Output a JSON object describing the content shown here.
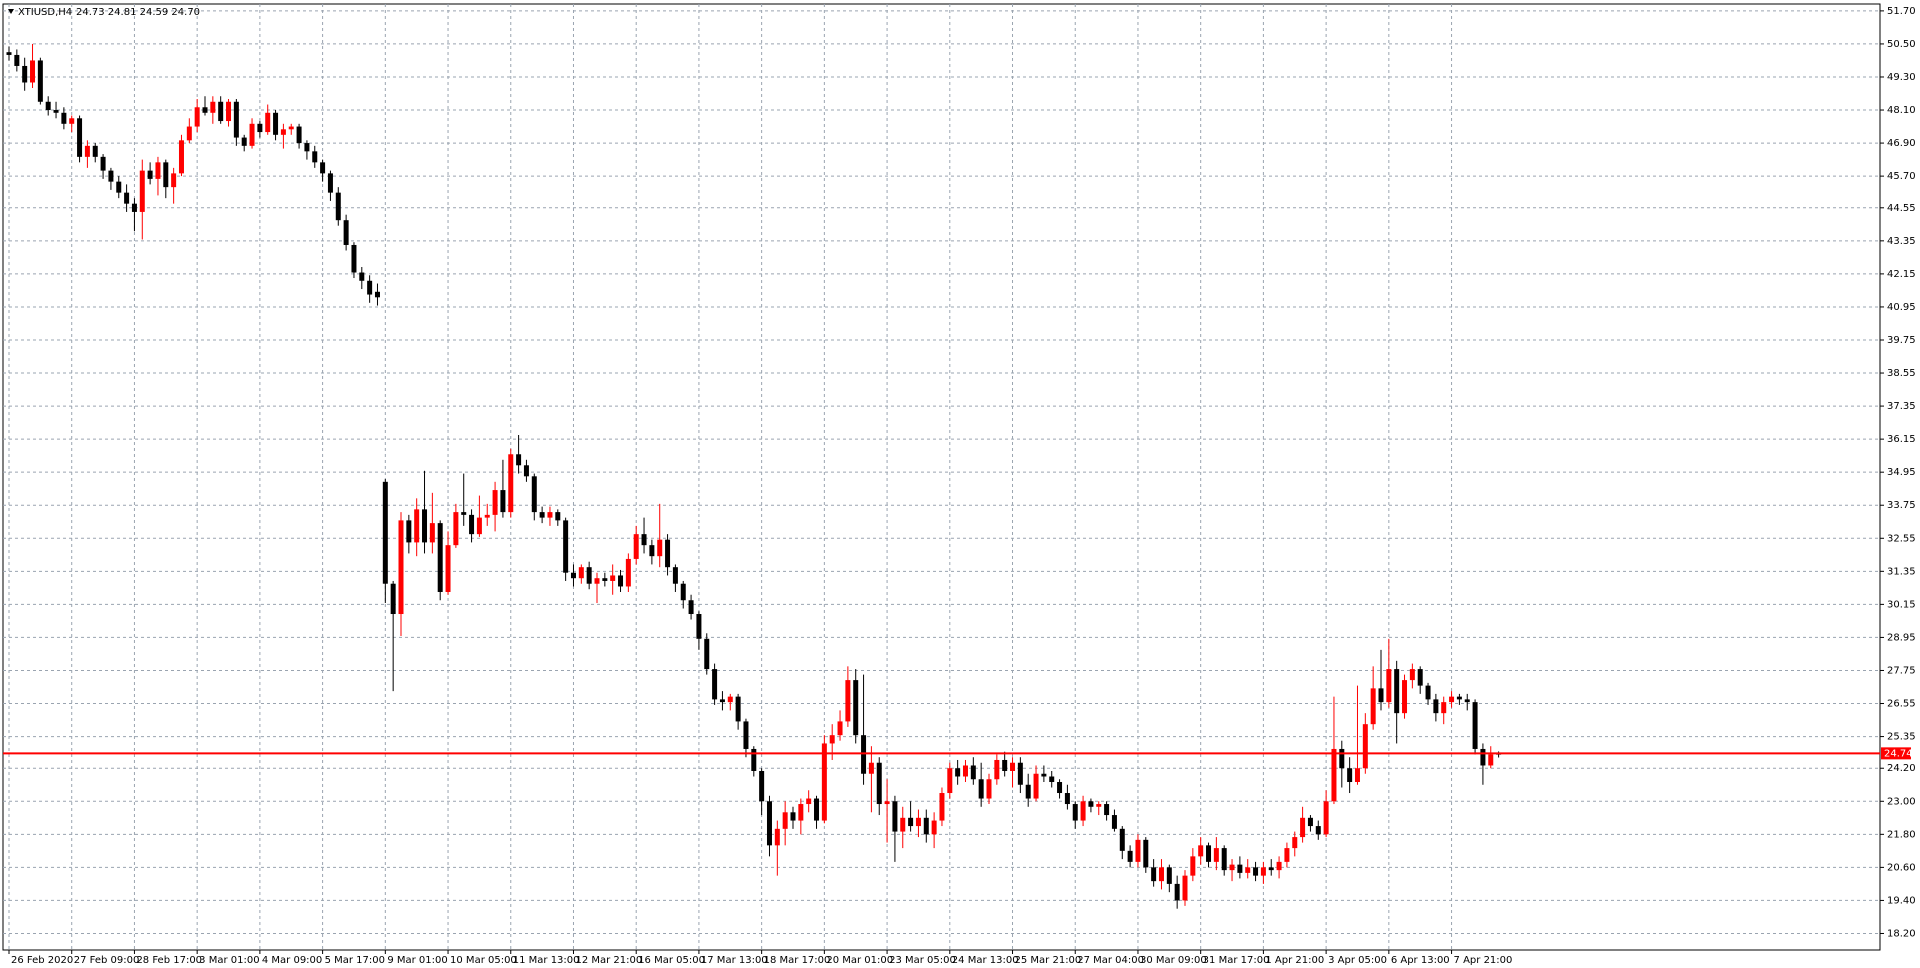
{
  "chart_data": {
    "type": "candlestick",
    "symbol": "XTIUSD,H4",
    "info": "24.73 24.81 24.59 24.70",
    "bull_color": "#ff0000",
    "bear_color": "#000000",
    "price_line_color": "#ff0000",
    "grid": true,
    "current_price": 24.74,
    "ylim": [
      17.6,
      51.95
    ],
    "yticks": [
      {
        "value": 51.7,
        "label": "51.70"
      },
      {
        "value": 50.5,
        "label": "50.50"
      },
      {
        "value": 49.3,
        "label": "49.30"
      },
      {
        "value": 48.1,
        "label": "48.10"
      },
      {
        "value": 46.9,
        "label": "46.90"
      },
      {
        "value": 45.7,
        "label": "45.70"
      },
      44.55,
      43.35,
      42.15,
      40.95,
      39.75,
      38.55,
      37.35,
      36.15,
      34.95,
      33.75,
      32.55,
      31.35,
      {
        "value": 30.15,
        "label": "30.15"
      },
      28.95,
      {
        "value": 27.75,
        "label": "27.75"
      },
      26.55,
      25.35,
      {
        "value": 24.2,
        "label": "24.20"
      },
      {
        "value": 23.0,
        "label": "23.00"
      },
      {
        "value": 21.8,
        "label": "21.80"
      },
      {
        "value": 20.6,
        "label": "20.60"
      },
      {
        "value": 19.4,
        "label": "19.40"
      },
      {
        "value": 18.2,
        "label": "18.20"
      }
    ],
    "x_labels": [
      "26 Feb 2020",
      "27 Feb 09:00",
      "28 Feb 17:00",
      "3 Mar 01:00",
      "4 Mar 09:00",
      "5 Mar 17:00",
      "9 Mar 01:00",
      "10 Mar 05:00",
      "11 Mar 13:00",
      "12 Mar 21:00",
      "16 Mar 05:00",
      "17 Mar 13:00",
      "18 Mar 17:00",
      "20 Mar 01:00",
      "23 Mar 05:00",
      "24 Mar 13:00",
      "25 Mar 21:00",
      "27 Mar 04:00",
      "30 Mar 09:00",
      "31 Mar 17:00",
      "1 Apr 21:00",
      "3 Apr 05:00",
      "6 Apr 13:00",
      "7 Apr 21:00"
    ],
    "ohlc": [
      [
        50.2,
        50.4,
        49.9,
        50.1
      ],
      [
        50.1,
        50.3,
        49.5,
        49.7
      ],
      [
        49.7,
        50.0,
        48.8,
        49.1
      ],
      [
        49.1,
        50.5,
        48.9,
        49.9
      ],
      [
        49.9,
        50.0,
        48.3,
        48.4
      ],
      [
        48.4,
        48.6,
        47.9,
        48.1
      ],
      [
        48.1,
        48.4,
        47.8,
        48.0
      ],
      [
        48.0,
        48.2,
        47.4,
        47.6
      ],
      [
        47.6,
        47.9,
        47.3,
        47.8
      ],
      [
        47.8,
        47.9,
        46.2,
        46.4
      ],
      [
        46.4,
        47.0,
        46.0,
        46.8
      ],
      [
        46.8,
        46.9,
        46.2,
        46.4
      ],
      [
        46.4,
        46.5,
        45.6,
        45.9
      ],
      [
        45.9,
        46.0,
        45.2,
        45.5
      ],
      [
        45.5,
        45.7,
        44.9,
        45.1
      ],
      [
        45.1,
        45.4,
        44.4,
        44.7
      ],
      [
        44.7,
        44.9,
        43.7,
        44.4
      ],
      [
        44.4,
        46.3,
        43.4,
        45.9
      ],
      [
        45.9,
        46.2,
        45.4,
        45.6
      ],
      [
        45.6,
        46.4,
        45.0,
        46.2
      ],
      [
        46.2,
        46.3,
        44.9,
        45.3
      ],
      [
        45.3,
        46.0,
        44.7,
        45.8
      ],
      [
        45.8,
        47.2,
        45.7,
        47.0
      ],
      [
        47.0,
        47.8,
        46.9,
        47.5
      ],
      [
        47.5,
        48.5,
        47.3,
        48.2
      ],
      [
        48.2,
        48.6,
        47.9,
        48.0
      ],
      [
        48.0,
        48.6,
        47.6,
        48.4
      ],
      [
        48.4,
        48.6,
        47.6,
        47.7
      ],
      [
        47.7,
        48.5,
        47.5,
        48.4
      ],
      [
        48.4,
        48.5,
        46.8,
        47.1
      ],
      [
        47.1,
        47.2,
        46.6,
        46.8
      ],
      [
        46.8,
        47.8,
        46.7,
        47.6
      ],
      [
        47.6,
        47.7,
        47.1,
        47.3
      ],
      [
        47.3,
        48.3,
        47.2,
        48.0
      ],
      [
        48.0,
        48.1,
        47.0,
        47.2
      ],
      [
        47.2,
        47.6,
        46.7,
        47.4
      ],
      [
        47.4,
        47.6,
        47.2,
        47.5
      ],
      [
        47.5,
        47.6,
        46.7,
        46.9
      ],
      [
        46.9,
        47.0,
        46.3,
        46.6
      ],
      [
        46.6,
        46.8,
        46.0,
        46.2
      ],
      [
        46.2,
        46.3,
        45.5,
        45.8
      ],
      [
        45.8,
        45.9,
        44.8,
        45.1
      ],
      [
        45.1,
        45.3,
        43.9,
        44.1
      ],
      [
        44.1,
        44.3,
        43.0,
        43.2
      ],
      [
        43.2,
        43.3,
        42.0,
        42.2
      ],
      [
        42.2,
        42.4,
        41.6,
        41.9
      ],
      [
        41.9,
        42.1,
        41.1,
        41.4
      ],
      [
        41.5,
        41.8,
        41.0,
        41.3
      ],
      [
        34.6,
        34.7,
        30.2,
        30.9
      ],
      [
        30.9,
        31.0,
        27.0,
        29.8
      ],
      [
        29.8,
        33.5,
        29.0,
        33.2
      ],
      [
        33.2,
        33.4,
        32.0,
        32.4
      ],
      [
        32.4,
        34.0,
        31.9,
        33.6
      ],
      [
        33.6,
        35.0,
        32.0,
        32.4
      ],
      [
        32.4,
        34.2,
        32.0,
        33.1
      ],
      [
        33.1,
        33.2,
        30.3,
        30.6
      ],
      [
        30.6,
        32.8,
        30.5,
        32.3
      ],
      [
        32.3,
        33.8,
        32.2,
        33.5
      ],
      [
        33.5,
        34.9,
        33.0,
        33.4
      ],
      [
        33.4,
        33.6,
        32.4,
        32.7
      ],
      [
        32.7,
        34.1,
        32.6,
        33.3
      ],
      [
        33.3,
        33.8,
        33.0,
        33.4
      ],
      [
        33.4,
        34.6,
        32.8,
        34.3
      ],
      [
        34.3,
        35.4,
        33.3,
        33.5
      ],
      [
        33.5,
        35.8,
        33.3,
        35.6
      ],
      [
        35.6,
        36.3,
        34.9,
        35.2
      ],
      [
        35.2,
        35.4,
        34.6,
        34.8
      ],
      [
        34.8,
        34.9,
        33.2,
        33.5
      ],
      [
        33.5,
        33.7,
        33.1,
        33.3
      ],
      [
        33.3,
        33.7,
        33.0,
        33.5
      ],
      [
        33.5,
        33.6,
        33.0,
        33.2
      ],
      [
        33.2,
        33.3,
        31.0,
        31.3
      ],
      [
        31.3,
        31.6,
        30.8,
        31.1
      ],
      [
        31.1,
        31.6,
        30.9,
        31.5
      ],
      [
        31.5,
        31.7,
        30.7,
        30.9
      ],
      [
        30.9,
        31.3,
        30.2,
        31.1
      ],
      [
        31.1,
        31.3,
        30.8,
        31.0
      ],
      [
        31.0,
        31.6,
        30.5,
        31.2
      ],
      [
        31.2,
        31.4,
        30.6,
        30.8
      ],
      [
        30.8,
        32.0,
        30.6,
        31.8
      ],
      [
        31.8,
        33.0,
        31.6,
        32.7
      ],
      [
        32.7,
        33.3,
        32.0,
        32.3
      ],
      [
        32.3,
        32.5,
        31.6,
        31.9
      ],
      [
        31.9,
        33.8,
        31.5,
        32.5
      ],
      [
        32.5,
        32.7,
        31.2,
        31.5
      ],
      [
        31.5,
        31.6,
        30.6,
        30.9
      ],
      [
        30.9,
        31.0,
        30.0,
        30.3
      ],
      [
        30.3,
        30.5,
        29.6,
        29.8
      ],
      [
        29.8,
        29.9,
        28.5,
        28.9
      ],
      [
        28.9,
        29.1,
        27.6,
        27.8
      ],
      [
        27.8,
        28.0,
        26.5,
        26.7
      ],
      [
        26.7,
        27.0,
        26.3,
        26.6
      ],
      [
        26.6,
        26.9,
        26.3,
        26.8
      ],
      [
        26.8,
        26.9,
        25.6,
        25.9
      ],
      [
        25.9,
        26.0,
        24.6,
        24.9
      ],
      [
        24.9,
        25.0,
        23.9,
        24.1
      ],
      [
        24.1,
        24.2,
        22.5,
        23.0
      ],
      [
        23.0,
        23.2,
        21.0,
        21.4
      ],
      [
        21.4,
        22.3,
        20.3,
        22.0
      ],
      [
        22.0,
        23.0,
        21.4,
        22.6
      ],
      [
        22.6,
        22.8,
        22.0,
        22.3
      ],
      [
        22.3,
        23.1,
        21.8,
        22.9
      ],
      [
        22.9,
        23.4,
        22.6,
        23.1
      ],
      [
        23.1,
        23.2,
        22.0,
        22.3
      ],
      [
        22.3,
        25.4,
        22.2,
        25.1
      ],
      [
        25.1,
        25.8,
        24.5,
        25.4
      ],
      [
        25.4,
        26.3,
        25.2,
        25.9
      ],
      [
        25.9,
        27.9,
        25.7,
        27.4
      ],
      [
        27.4,
        27.8,
        25.1,
        25.4
      ],
      [
        25.4,
        27.6,
        23.6,
        24.0
      ],
      [
        24.0,
        25.0,
        22.6,
        24.4
      ],
      [
        24.4,
        24.6,
        22.5,
        22.9
      ],
      [
        22.9,
        23.8,
        21.5,
        23.0
      ],
      [
        23.0,
        23.2,
        20.8,
        21.9
      ],
      [
        21.9,
        22.8,
        21.3,
        22.4
      ],
      [
        22.4,
        23.0,
        21.9,
        22.1
      ],
      [
        22.1,
        22.7,
        21.7,
        22.4
      ],
      [
        22.4,
        22.7,
        21.5,
        21.8
      ],
      [
        21.8,
        22.6,
        21.3,
        22.3
      ],
      [
        22.3,
        23.5,
        22.1,
        23.3
      ],
      [
        23.3,
        24.4,
        23.1,
        24.2
      ],
      [
        24.2,
        24.5,
        23.6,
        23.9
      ],
      [
        23.9,
        24.5,
        23.7,
        24.3
      ],
      [
        24.3,
        24.6,
        23.6,
        23.8
      ],
      [
        23.8,
        24.4,
        22.8,
        23.1
      ],
      [
        23.1,
        24.0,
        22.9,
        23.8
      ],
      [
        23.8,
        24.7,
        23.6,
        24.5
      ],
      [
        24.5,
        24.8,
        23.9,
        24.1
      ],
      [
        24.1,
        24.6,
        23.5,
        24.4
      ],
      [
        24.4,
        24.6,
        23.3,
        23.6
      ],
      [
        23.6,
        24.0,
        22.8,
        23.1
      ],
      [
        23.1,
        24.3,
        23.0,
        24.0
      ],
      [
        24.0,
        24.3,
        23.7,
        23.9
      ],
      [
        23.9,
        24.1,
        23.5,
        23.7
      ],
      [
        23.7,
        23.8,
        23.1,
        23.3
      ],
      [
        23.3,
        23.6,
        22.7,
        22.9
      ],
      [
        22.9,
        23.0,
        22.0,
        22.3
      ],
      [
        22.3,
        23.2,
        22.1,
        23.0
      ],
      [
        23.0,
        23.1,
        22.6,
        22.8
      ],
      [
        22.8,
        23.0,
        22.5,
        22.9
      ],
      [
        22.9,
        23.0,
        22.3,
        22.5
      ],
      [
        22.5,
        22.7,
        21.9,
        22.0
      ],
      [
        22.0,
        22.1,
        20.9,
        21.2
      ],
      [
        21.2,
        21.4,
        20.6,
        20.8
      ],
      [
        20.8,
        21.8,
        20.6,
        21.6
      ],
      [
        21.6,
        21.7,
        20.4,
        20.6
      ],
      [
        20.6,
        20.9,
        19.9,
        20.1
      ],
      [
        20.1,
        20.9,
        19.8,
        20.6
      ],
      [
        20.6,
        20.7,
        19.7,
        20.0
      ],
      [
        20.0,
        20.3,
        19.1,
        19.4
      ],
      [
        19.4,
        20.5,
        19.2,
        20.3
      ],
      [
        20.3,
        21.3,
        20.1,
        21.0
      ],
      [
        21.0,
        21.7,
        20.7,
        21.4
      ],
      [
        21.4,
        21.5,
        20.6,
        20.8
      ],
      [
        20.8,
        21.7,
        20.5,
        21.3
      ],
      [
        21.3,
        21.4,
        20.3,
        20.5
      ],
      [
        20.5,
        20.9,
        20.1,
        20.7
      ],
      [
        20.7,
        21.0,
        20.2,
        20.4
      ],
      [
        20.4,
        20.9,
        20.2,
        20.6
      ],
      [
        20.6,
        20.8,
        20.1,
        20.3
      ],
      [
        20.3,
        20.8,
        20.0,
        20.6
      ],
      [
        20.6,
        20.9,
        20.3,
        20.5
      ],
      [
        20.5,
        21.0,
        20.2,
        20.8
      ],
      [
        20.8,
        21.5,
        20.6,
        21.3
      ],
      [
        21.3,
        21.9,
        21.0,
        21.7
      ],
      [
        21.7,
        22.8,
        21.5,
        22.4
      ],
      [
        22.4,
        22.5,
        21.9,
        22.1
      ],
      [
        22.1,
        22.3,
        21.6,
        21.8
      ],
      [
        21.8,
        23.4,
        21.7,
        23.0
      ],
      [
        23.0,
        26.8,
        22.9,
        24.9
      ],
      [
        24.9,
        25.2,
        23.5,
        24.2
      ],
      [
        24.2,
        24.6,
        23.3,
        23.7
      ],
      [
        23.7,
        27.2,
        23.6,
        24.2
      ],
      [
        24.2,
        26.2,
        24.0,
        25.8
      ],
      [
        25.8,
        27.9,
        25.6,
        27.1
      ],
      [
        27.1,
        28.5,
        26.3,
        26.6
      ],
      [
        26.6,
        28.9,
        26.4,
        27.8
      ],
      [
        27.8,
        28.1,
        25.1,
        26.2
      ],
      [
        26.2,
        27.6,
        26.0,
        27.4
      ],
      [
        27.4,
        28.0,
        27.1,
        27.8
      ],
      [
        27.8,
        27.9,
        26.9,
        27.2
      ],
      [
        27.2,
        27.3,
        26.5,
        26.7
      ],
      [
        26.7,
        26.9,
        25.9,
        26.2
      ],
      [
        26.2,
        26.8,
        25.8,
        26.6
      ],
      [
        26.6,
        27.0,
        26.4,
        26.8
      ],
      [
        26.8,
        26.9,
        26.5,
        26.7
      ],
      [
        26.7,
        26.9,
        26.3,
        26.6
      ],
      [
        26.6,
        26.7,
        24.7,
        24.9
      ],
      [
        24.9,
        25.1,
        23.6,
        24.3
      ],
      [
        24.3,
        25.0,
        24.2,
        24.7
      ],
      [
        24.73,
        24.81,
        24.59,
        24.7
      ]
    ]
  }
}
